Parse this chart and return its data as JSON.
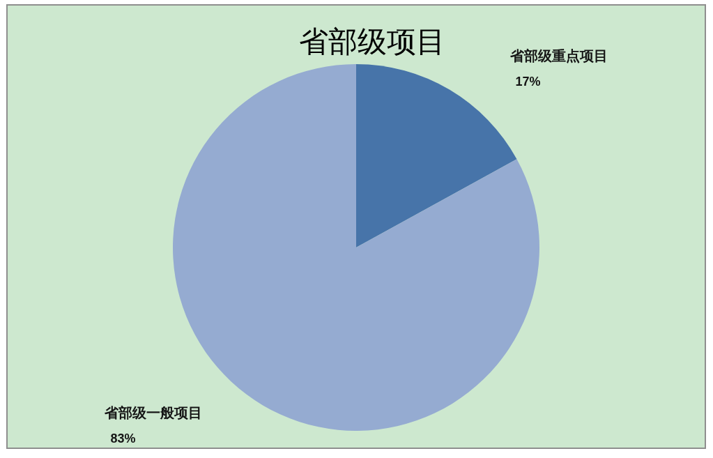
{
  "chart_data": {
    "type": "pie",
    "title": "省部级项目",
    "categories": [
      "省部级重点项目",
      "省部级一般项目"
    ],
    "values": [
      17,
      83
    ],
    "value_labels": [
      "17%",
      "83%"
    ],
    "colors": [
      "#4774a9",
      "#95abd1"
    ]
  }
}
